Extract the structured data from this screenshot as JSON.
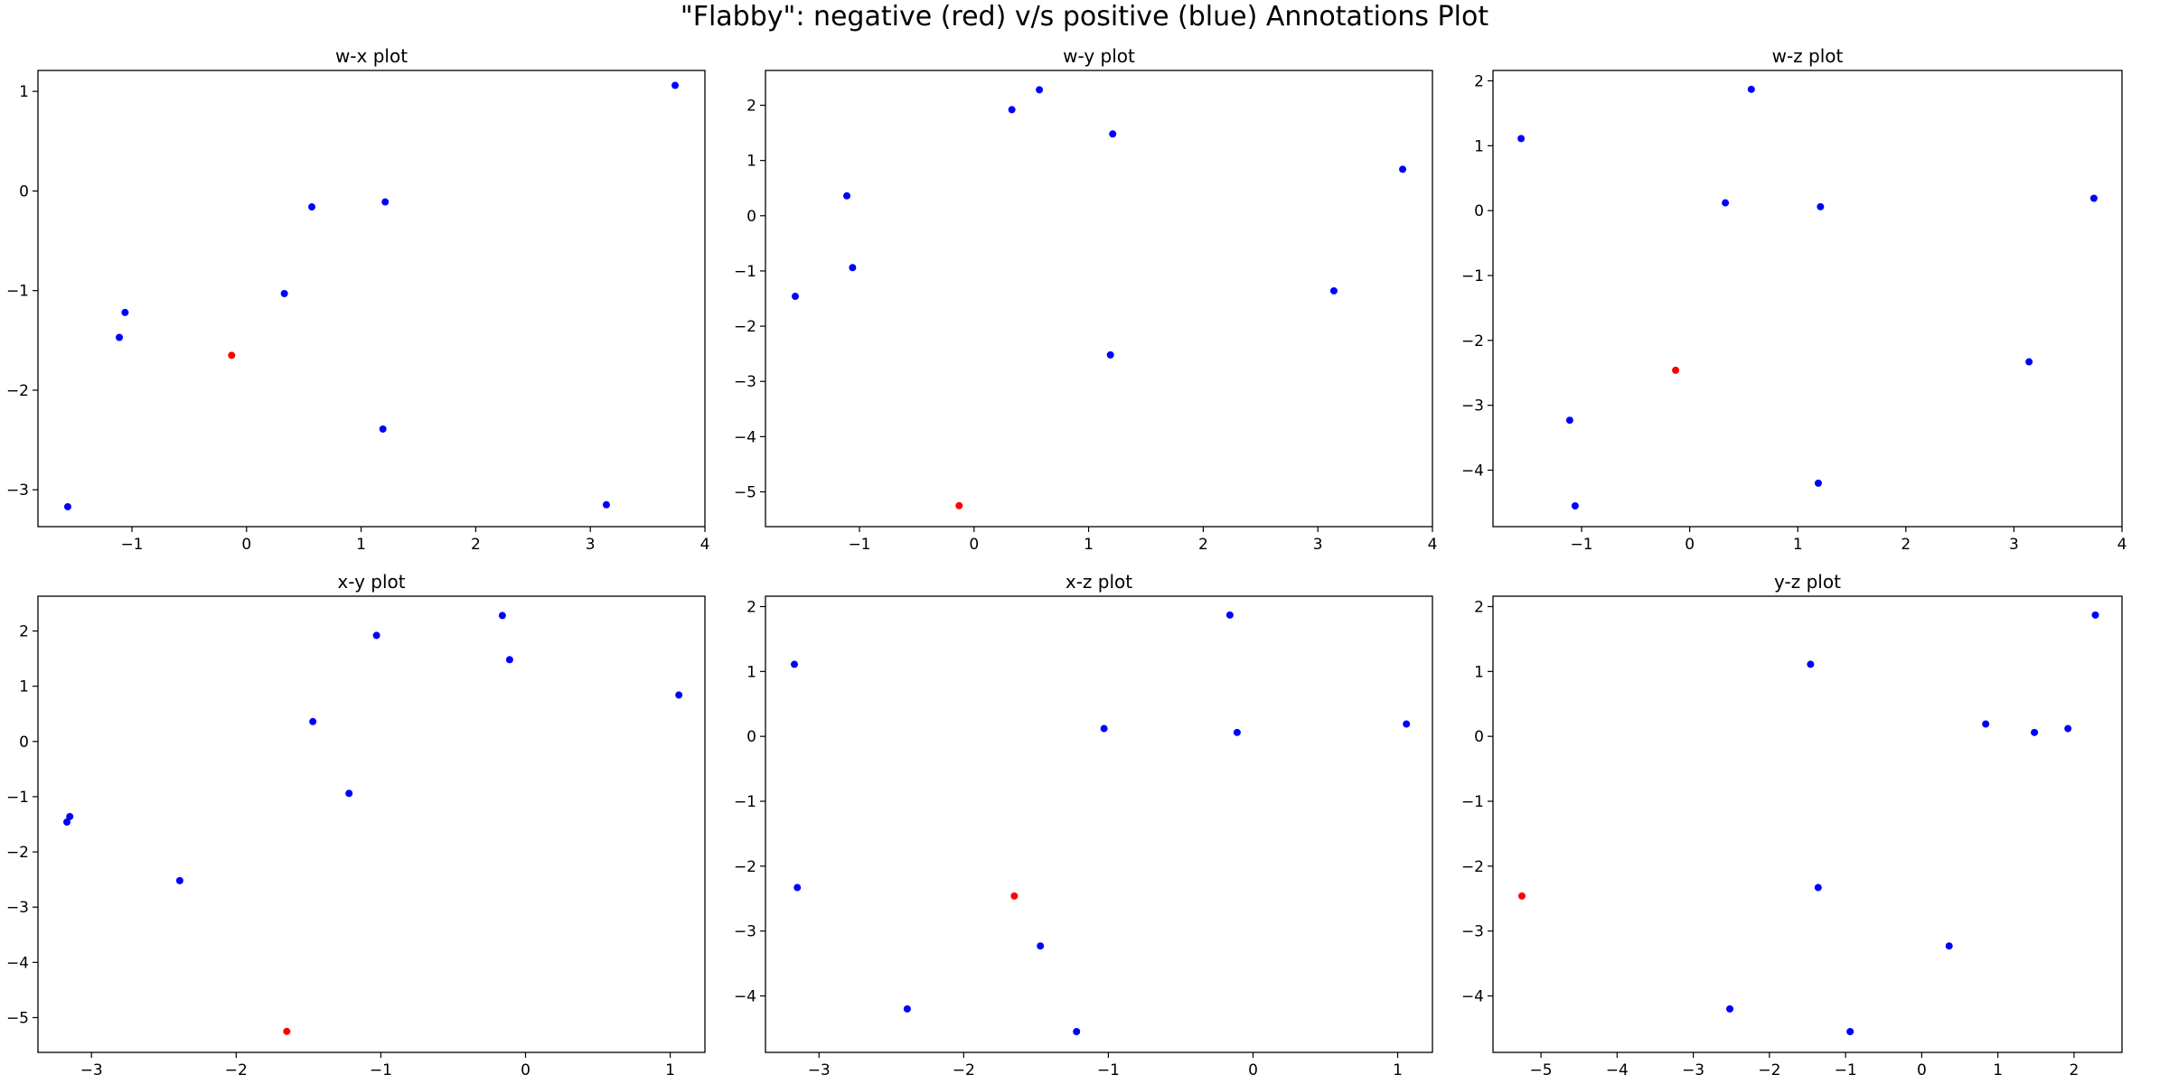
{
  "title": "\"Flabby\": negative (red) v/s positive (blue) Annotations Plot",
  "colors": {
    "negative": "#ff0000",
    "positive": "#0000ff"
  },
  "chart_data": [
    {
      "type": "scatter",
      "title": "w-x plot",
      "xlabel": "",
      "ylabel": "",
      "xlim": [
        -1.82,
        4.0
      ],
      "ylim": [
        -3.37,
        1.21
      ],
      "xticks": [
        -1,
        0,
        1,
        2,
        3,
        4
      ],
      "xtick_labels": [
        "−1",
        "0",
        "1",
        "2",
        "3",
        "4"
      ],
      "yticks": [
        -3,
        -2,
        -1,
        0,
        1
      ],
      "ytick_labels": [
        "−3",
        "−2",
        "−1",
        "0",
        "1"
      ],
      "points": [
        {
          "x": -1.56,
          "y": -3.17,
          "label": "positive"
        },
        {
          "x": -1.11,
          "y": -1.47,
          "label": "positive"
        },
        {
          "x": -1.06,
          "y": -1.22,
          "label": "positive"
        },
        {
          "x": -0.13,
          "y": -1.65,
          "label": "negative"
        },
        {
          "x": 0.33,
          "y": -1.03,
          "label": "positive"
        },
        {
          "x": 0.57,
          "y": -0.16,
          "label": "positive"
        },
        {
          "x": 1.21,
          "y": -0.11,
          "label": "positive"
        },
        {
          "x": 1.19,
          "y": -2.39,
          "label": "positive"
        },
        {
          "x": 3.14,
          "y": -3.15,
          "label": "positive"
        },
        {
          "x": 3.74,
          "y": 1.06,
          "label": "positive"
        }
      ]
    },
    {
      "type": "scatter",
      "title": "w-y plot",
      "xlabel": "",
      "ylabel": "",
      "xlim": [
        -1.82,
        4.0
      ],
      "ylim": [
        -5.63,
        2.63
      ],
      "xticks": [
        -1,
        0,
        1,
        2,
        3,
        4
      ],
      "xtick_labels": [
        "−1",
        "0",
        "1",
        "2",
        "3",
        "4"
      ],
      "yticks": [
        -5,
        -4,
        -3,
        -2,
        -1,
        0,
        1,
        2
      ],
      "ytick_labels": [
        "−5",
        "−4",
        "−3",
        "−2",
        "−1",
        "0",
        "1",
        "2"
      ],
      "points": [
        {
          "x": -1.56,
          "y": -1.46,
          "label": "positive"
        },
        {
          "x": -1.11,
          "y": 0.36,
          "label": "positive"
        },
        {
          "x": -1.06,
          "y": -0.94,
          "label": "positive"
        },
        {
          "x": -0.13,
          "y": -5.25,
          "label": "negative"
        },
        {
          "x": 0.33,
          "y": 1.92,
          "label": "positive"
        },
        {
          "x": 0.57,
          "y": 2.28,
          "label": "positive"
        },
        {
          "x": 1.21,
          "y": 1.48,
          "label": "positive"
        },
        {
          "x": 1.19,
          "y": -2.52,
          "label": "positive"
        },
        {
          "x": 3.14,
          "y": -1.36,
          "label": "positive"
        },
        {
          "x": 3.74,
          "y": 0.84,
          "label": "positive"
        }
      ]
    },
    {
      "type": "scatter",
      "title": "w-z plot",
      "xlabel": "",
      "ylabel": "",
      "xlim": [
        -1.82,
        4.0
      ],
      "ylim": [
        -4.87,
        2.16
      ],
      "xticks": [
        -1,
        0,
        1,
        2,
        3,
        4
      ],
      "xtick_labels": [
        "−1",
        "0",
        "1",
        "2",
        "3",
        "4"
      ],
      "yticks": [
        -4,
        -3,
        -2,
        -1,
        0,
        1,
        2
      ],
      "ytick_labels": [
        "−4",
        "−3",
        "−2",
        "−1",
        "0",
        "1",
        "2"
      ],
      "points": [
        {
          "x": -1.56,
          "y": 1.11,
          "label": "positive"
        },
        {
          "x": -1.11,
          "y": -3.23,
          "label": "positive"
        },
        {
          "x": -1.06,
          "y": -4.55,
          "label": "positive"
        },
        {
          "x": -0.13,
          "y": -2.46,
          "label": "negative"
        },
        {
          "x": 0.33,
          "y": 0.12,
          "label": "positive"
        },
        {
          "x": 0.57,
          "y": 1.87,
          "label": "positive"
        },
        {
          "x": 1.21,
          "y": 0.06,
          "label": "positive"
        },
        {
          "x": 1.19,
          "y": -4.2,
          "label": "positive"
        },
        {
          "x": 3.14,
          "y": -2.33,
          "label": "positive"
        },
        {
          "x": 3.74,
          "y": 0.19,
          "label": "positive"
        }
      ]
    },
    {
      "type": "scatter",
      "title": "x-y plot",
      "xlabel": "",
      "ylabel": "",
      "xlim": [
        -3.37,
        1.24
      ],
      "ylim": [
        -5.63,
        2.63
      ],
      "xticks": [
        -3,
        -2,
        -1,
        0,
        1
      ],
      "xtick_labels": [
        "−3",
        "−2",
        "−1",
        "0",
        "1"
      ],
      "yticks": [
        -5,
        -4,
        -3,
        -2,
        -1,
        0,
        1,
        2
      ],
      "ytick_labels": [
        "−5",
        "−4",
        "−3",
        "−2",
        "−1",
        "0",
        "1",
        "2"
      ],
      "points": [
        {
          "x": -3.17,
          "y": -1.46,
          "label": "positive"
        },
        {
          "x": -3.15,
          "y": -1.36,
          "label": "positive"
        },
        {
          "x": -2.39,
          "y": -2.52,
          "label": "positive"
        },
        {
          "x": -1.65,
          "y": -5.25,
          "label": "negative"
        },
        {
          "x": -1.47,
          "y": 0.36,
          "label": "positive"
        },
        {
          "x": -1.22,
          "y": -0.94,
          "label": "positive"
        },
        {
          "x": -1.03,
          "y": 1.92,
          "label": "positive"
        },
        {
          "x": -0.16,
          "y": 2.28,
          "label": "positive"
        },
        {
          "x": -0.11,
          "y": 1.48,
          "label": "positive"
        },
        {
          "x": 1.06,
          "y": 0.84,
          "label": "positive"
        }
      ]
    },
    {
      "type": "scatter",
      "title": "x-z plot",
      "xlabel": "",
      "ylabel": "",
      "xlim": [
        -3.37,
        1.24
      ],
      "ylim": [
        -4.87,
        2.16
      ],
      "xticks": [
        -3,
        -2,
        -1,
        0,
        1
      ],
      "xtick_labels": [
        "−3",
        "−2",
        "−1",
        "0",
        "1"
      ],
      "yticks": [
        -4,
        -3,
        -2,
        -1,
        0,
        1,
        2
      ],
      "ytick_labels": [
        "−4",
        "−3",
        "−2",
        "−1",
        "0",
        "1",
        "2"
      ],
      "points": [
        {
          "x": -3.17,
          "y": 1.11,
          "label": "positive"
        },
        {
          "x": -3.15,
          "y": -2.33,
          "label": "positive"
        },
        {
          "x": -2.39,
          "y": -4.2,
          "label": "positive"
        },
        {
          "x": -1.65,
          "y": -2.46,
          "label": "negative"
        },
        {
          "x": -1.47,
          "y": -3.23,
          "label": "positive"
        },
        {
          "x": -1.22,
          "y": -4.55,
          "label": "positive"
        },
        {
          "x": -1.03,
          "y": 0.12,
          "label": "positive"
        },
        {
          "x": -0.16,
          "y": 1.87,
          "label": "positive"
        },
        {
          "x": -0.11,
          "y": 0.06,
          "label": "positive"
        },
        {
          "x": 1.06,
          "y": 0.19,
          "label": "positive"
        }
      ]
    },
    {
      "type": "scatter",
      "title": "y-z plot",
      "xlabel": "",
      "ylabel": "",
      "xlim": [
        -5.63,
        2.63
      ],
      "ylim": [
        -4.87,
        2.16
      ],
      "xticks": [
        -5,
        -4,
        -3,
        -2,
        -1,
        0,
        1,
        2
      ],
      "xtick_labels": [
        "−5",
        "−4",
        "−3",
        "−2",
        "−1",
        "0",
        "1",
        "2"
      ],
      "yticks": [
        -4,
        -3,
        -2,
        -1,
        0,
        1,
        2
      ],
      "ytick_labels": [
        "−4",
        "−3",
        "−2",
        "−1",
        "0",
        "1",
        "2"
      ],
      "points": [
        {
          "x": -5.25,
          "y": -2.46,
          "label": "negative"
        },
        {
          "x": -2.52,
          "y": -4.2,
          "label": "positive"
        },
        {
          "x": -1.46,
          "y": 1.11,
          "label": "positive"
        },
        {
          "x": -1.36,
          "y": -2.33,
          "label": "positive"
        },
        {
          "x": -0.94,
          "y": -4.55,
          "label": "positive"
        },
        {
          "x": 0.36,
          "y": -3.23,
          "label": "positive"
        },
        {
          "x": 0.84,
          "y": 0.19,
          "label": "positive"
        },
        {
          "x": 1.48,
          "y": 0.06,
          "label": "positive"
        },
        {
          "x": 1.92,
          "y": 0.12,
          "label": "positive"
        },
        {
          "x": 2.28,
          "y": 1.87,
          "label": "positive"
        }
      ]
    }
  ]
}
